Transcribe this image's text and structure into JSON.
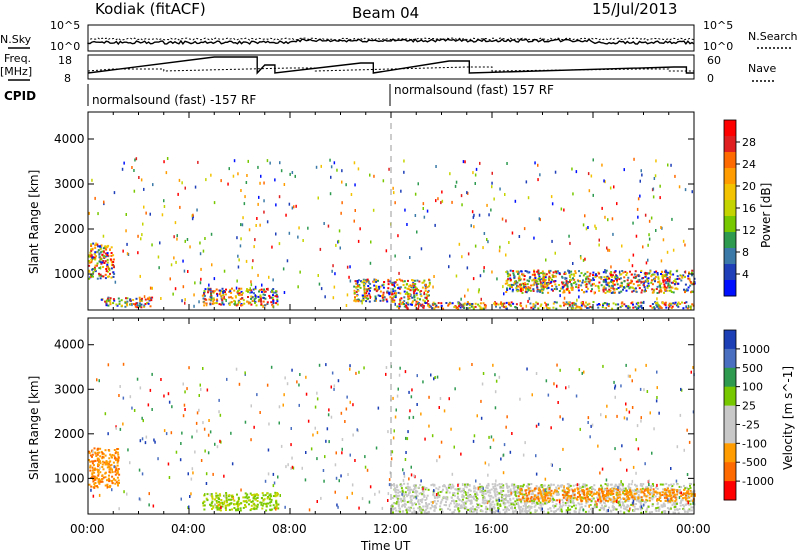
{
  "header": {
    "station": "Kodiak (fitACF)",
    "beam": "Beam 04",
    "date": "15/Jul/2013"
  },
  "top_panels": {
    "left_labels": [
      "N.Sky",
      "Freq.",
      "[MHz]",
      "CPID"
    ],
    "right_labels": [
      "N.Search",
      "Nave"
    ],
    "nsky_ticks": [
      "10^5",
      "10^0"
    ],
    "nsearch_ticks": [
      "10^5",
      "10^0"
    ],
    "freq_ticks": [
      "18",
      "8"
    ],
    "nave_ticks": [
      "60",
      "0"
    ],
    "cpid_left": "normalsound (fast) -157 RF",
    "cpid_right": "normalsound (fast) 157 RF"
  },
  "chart_data": [
    {
      "type": "heatmap",
      "panel": "power",
      "ylabel": "Slant Range [km]",
      "xlabel": "",
      "ylim": [
        200,
        4600
      ],
      "y_ticks": [
        1000,
        2000,
        3000,
        4000
      ],
      "colorbar_label": "Power [dB]",
      "colorbar_ticks": [
        "28",
        "24",
        "20",
        "16",
        "12",
        "8",
        "4"
      ],
      "colorbar_colors": [
        "#ff0000",
        "#e02020",
        "#ff6a00",
        "#ff9d00",
        "#f3c200",
        "#c4d400",
        "#78c800",
        "#2e9a4f",
        "#3b7aa8",
        "#1f3fb8",
        "#0010ff"
      ],
      "echo_regions": [
        {
          "t0": 0.0,
          "t1": 1.0,
          "r0": 900,
          "r1": 1700,
          "level": "16-28"
        },
        {
          "t0": 0.5,
          "t1": 2.5,
          "r0": 280,
          "r1": 500,
          "level": "4-28"
        },
        {
          "t0": 4.5,
          "t1": 7.5,
          "r0": 320,
          "r1": 700,
          "level": "16-28"
        },
        {
          "t0": 10.5,
          "t1": 13.5,
          "r0": 400,
          "r1": 900,
          "level": "8-28"
        },
        {
          "t0": 16.5,
          "t1": 24.0,
          "r0": 600,
          "r1": 1100,
          "level": "12-28"
        },
        {
          "t0": 12.0,
          "t1": 24.0,
          "r0": 250,
          "r1": 400,
          "level": "4-16"
        }
      ]
    },
    {
      "type": "heatmap",
      "panel": "velocity",
      "ylabel": "Slant Range [km]",
      "xlabel": "Time UT",
      "ylim": [
        200,
        4600
      ],
      "y_ticks": [
        1000,
        2000,
        3000,
        4000
      ],
      "colorbar_label": "Velocity [m s^-1]",
      "colorbar_ticks": [
        "1000",
        "500",
        "100",
        "25",
        "-25",
        "-100",
        "-500",
        "-1000"
      ],
      "colorbar_colors": [
        "#1c3fb6",
        "#4a6fc0",
        "#2e9a4f",
        "#78c800",
        "#c8c8c8",
        "#c8c8c8",
        "#ff9d00",
        "#ff6a00",
        "#ff0000"
      ],
      "echo_regions": [
        {
          "t0": 0.0,
          "t1": 1.2,
          "r0": 800,
          "r1": 1700,
          "level": "-100..-500"
        },
        {
          "t0": 4.5,
          "t1": 7.5,
          "r0": 300,
          "r1": 700,
          "level": "25..100"
        },
        {
          "t0": 12.0,
          "t1": 24.0,
          "r0": 250,
          "r1": 900,
          "level": "-25..25"
        },
        {
          "t0": 17.0,
          "t1": 24.0,
          "r0": 500,
          "r1": 800,
          "level": "-100..-500"
        }
      ]
    }
  ],
  "x_axis": {
    "ticks": [
      "00:00",
      "04:00",
      "08:00",
      "12:00",
      "16:00",
      "20:00",
      "00:00"
    ],
    "label": "Time UT"
  }
}
